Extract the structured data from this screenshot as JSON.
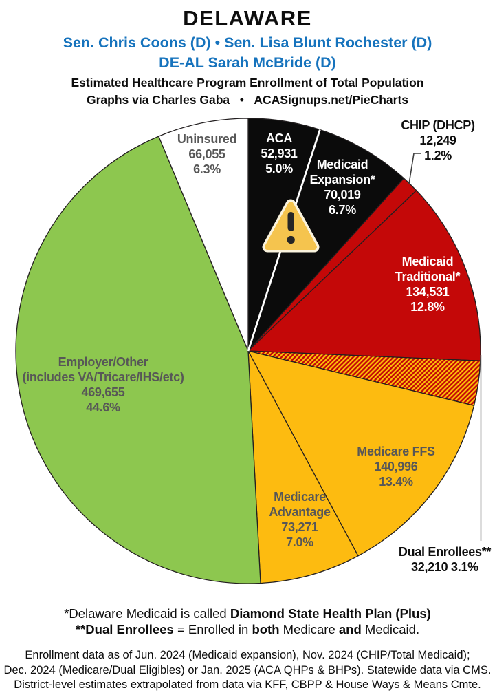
{
  "header": {
    "state": "DELAWARE",
    "senators": "Sen. Chris Coons (D) • Sen. Lisa Blunt Rochester (D)",
    "representative": "DE-AL Sarah McBride (D)",
    "subtitle": "Estimated Healthcare Program Enrollment of Total Population",
    "attribution": "Graphs via Charles Gaba   •   ACASignups.net/PieCharts",
    "accent_color": "#1673bd"
  },
  "chart_data": {
    "type": "pie",
    "title": "Estimated Healthcare Program Enrollment of Total Population",
    "start_angle_deg": 0,
    "direction": "clockwise",
    "slices": [
      {
        "id": "aca",
        "name": "ACA",
        "value": 52931,
        "value_text": "52,931",
        "pct": 5.0,
        "pct_text": "5.0%",
        "color": "#0b0b0b",
        "label_lines": [
          "ACA",
          "52,931",
          "5.0%"
        ]
      },
      {
        "id": "medicaid-expansion",
        "name": "Medicaid Expansion*",
        "value": 70019,
        "value_text": "70,019",
        "pct": 6.7,
        "pct_text": "6.7%",
        "color": "#0b0b0b",
        "label_lines": [
          "Medicaid",
          "Expansion*",
          "70,019",
          "6.7%"
        ]
      },
      {
        "id": "chip",
        "name": "CHIP (DHCP)",
        "value": 12249,
        "value_text": "12,249",
        "pct": 1.2,
        "pct_text": "1.2%",
        "color": "#c40808",
        "label_lines": [
          "CHIP (DHCP)",
          "12,249",
          "1.2%"
        ]
      },
      {
        "id": "medicaid-traditional",
        "name": "Medicaid Traditional*",
        "value": 134531,
        "value_text": "134,531",
        "pct": 12.8,
        "pct_text": "12.8%",
        "color": "#c40808",
        "label_lines": [
          "Medicaid",
          "Traditional*",
          "134,531",
          "12.8%"
        ]
      },
      {
        "id": "dual-enrollees",
        "name": "Dual Enrollees**",
        "value": 32210,
        "value_text": "32,210",
        "pct": 3.1,
        "pct_text": "3.1%",
        "color": "hatch",
        "label_lines": [
          "Dual Enrollees**",
          "32,210 3.1%"
        ]
      },
      {
        "id": "medicare-ffs",
        "name": "Medicare FFS",
        "value": 140996,
        "value_text": "140,996",
        "pct": 13.4,
        "pct_text": "13.4%",
        "color": "#fdbb10",
        "label_lines": [
          "Medicare FFS",
          "140,996",
          "13.4%"
        ]
      },
      {
        "id": "medicare-advantage",
        "name": "Medicare Advantage",
        "value": 73271,
        "value_text": "73,271",
        "pct": 7.0,
        "pct_text": "7.0%",
        "color": "#fdbb10",
        "label_lines": [
          "Medicare",
          "Advantage",
          "73,271",
          "7.0%"
        ]
      },
      {
        "id": "employer-other",
        "name": "Employer/Other (includes VA/Tricare/IHS/etc)",
        "value": 469655,
        "value_text": "469,655",
        "pct": 44.6,
        "pct_text": "44.6%",
        "color": "#8dc74f",
        "label_lines": [
          "Employer/Other",
          "(includes VA/Tricare/IHS/etc)",
          "469,655",
          "44.6%"
        ]
      },
      {
        "id": "uninsured",
        "name": "Uninsured",
        "value": 66055,
        "value_text": "66,055",
        "pct": 6.3,
        "pct_text": "6.3%",
        "color": "#ffffff",
        "label_lines": [
          "Uninsured",
          "66,055",
          "6.3%"
        ]
      }
    ],
    "hatch_colors": {
      "base": "#c40808",
      "stripe": "#fdc108"
    },
    "slice_outline_color": "#231f20",
    "divider_color": "#ffffff",
    "warning_icon": {
      "fill": "#f5c44e",
      "border": "#faf3dd",
      "glyph_color": "#262626"
    }
  },
  "footnotes": {
    "fn1_text": "*Delaware Medicaid is called ",
    "fn1_bold": "Diamond State Health Plan (Plus)",
    "fn2_b1": "**Dual Enrollees",
    "fn2_t1": " = Enrolled in ",
    "fn2_b2": "both",
    "fn2_t2": " Medicare ",
    "fn2_b3": "and",
    "fn2_t3": " Medicaid.",
    "source": [
      "Enrollment data as of Jun. 2024 (Medicaid expansion), Nov. 2024 (CHIP/Total Medicaid);",
      "Dec. 2024 (Medicare/Dual Eligibles) or Jan. 2025 (ACA QHPs & BHPs). Statewide data via CMS.",
      "District-level estimates extrapolated from data via KFF, CBPP & House Ways & Means Cmte."
    ]
  }
}
